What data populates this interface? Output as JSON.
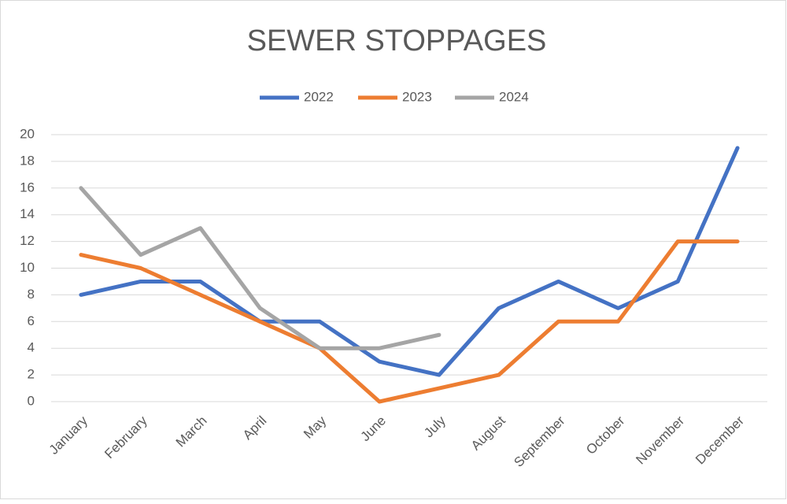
{
  "chart_data": {
    "type": "line",
    "title": "SEWER STOPPAGES",
    "categories": [
      "January",
      "February",
      "March",
      "April",
      "May",
      "June",
      "July",
      "August",
      "September",
      "October",
      "November",
      "December"
    ],
    "series": [
      {
        "name": "2022",
        "color": "#4472c4",
        "values": [
          8,
          9,
          9,
          6,
          6,
          3,
          2,
          7,
          9,
          7,
          9,
          19
        ]
      },
      {
        "name": "2023",
        "color": "#ed7d31",
        "values": [
          11,
          10,
          8,
          6,
          4,
          0,
          1,
          2,
          6,
          6,
          12,
          12
        ]
      },
      {
        "name": "2024",
        "color": "#a5a5a5",
        "values": [
          16,
          11,
          13,
          7,
          4,
          4,
          5,
          null,
          null,
          null,
          null,
          null
        ]
      }
    ],
    "ylim": [
      0,
      20
    ],
    "yticks": [
      0,
      2,
      4,
      6,
      8,
      10,
      12,
      14,
      16,
      18,
      20
    ],
    "grid": true,
    "legend": "top"
  }
}
